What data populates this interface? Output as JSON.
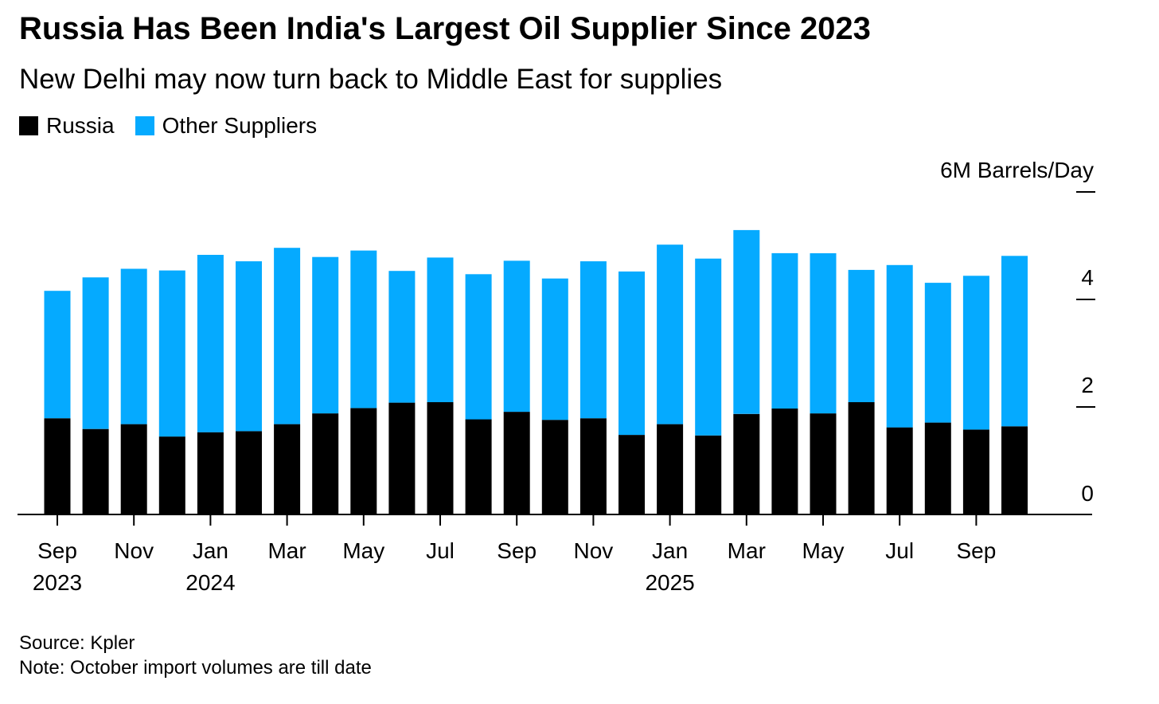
{
  "title": "Russia Has Been India's Largest Oil Supplier Since 2023",
  "subtitle": "New Delhi may now turn back to Middle East for supplies",
  "legend": [
    {
      "label": "Russia",
      "color": "#000000"
    },
    {
      "label": "Other Suppliers",
      "color": "#05aaff"
    }
  ],
  "footer": {
    "source": "Source: Kpler",
    "note": "Note: October import volumes are till date"
  },
  "chart_data": {
    "type": "bar",
    "stacked": true,
    "unit_label": "6M Barrels/Day",
    "ylim": [
      0,
      6
    ],
    "yticks": [
      {
        "value": 6,
        "label": "6M Barrels/Day"
      },
      {
        "value": 4,
        "label": "4"
      },
      {
        "value": 2,
        "label": "2"
      },
      {
        "value": 0,
        "label": "0"
      }
    ],
    "categories": [
      "Sep 2023",
      "Oct 2023",
      "Nov 2023",
      "Dec 2023",
      "Jan 2024",
      "Feb 2024",
      "Mar 2024",
      "Apr 2024",
      "May 2024",
      "Jun 2024",
      "Jul 2024",
      "Aug 2024",
      "Sep 2024",
      "Oct 2024",
      "Nov 2024",
      "Dec 2024",
      "Jan 2025",
      "Feb 2025",
      "Mar 2025",
      "Apr 2025",
      "May 2025",
      "Jun 2025",
      "Jul 2025",
      "Aug 2025",
      "Sep 2025",
      "Oct 2025"
    ],
    "series": [
      {
        "name": "Russia",
        "color": "#000000",
        "values": [
          1.79,
          1.59,
          1.68,
          1.45,
          1.53,
          1.55,
          1.68,
          1.88,
          1.98,
          2.08,
          2.09,
          1.77,
          1.91,
          1.76,
          1.79,
          1.48,
          1.68,
          1.47,
          1.87,
          1.97,
          1.88,
          2.09,
          1.62,
          1.71,
          1.58,
          1.64
        ]
      },
      {
        "name": "Other Suppliers",
        "color": "#05aaff",
        "values": [
          2.37,
          2.82,
          2.89,
          3.09,
          3.3,
          3.16,
          3.28,
          2.91,
          2.93,
          2.45,
          2.69,
          2.7,
          2.81,
          2.63,
          2.92,
          3.04,
          3.34,
          3.29,
          3.42,
          2.89,
          2.98,
          2.46,
          3.02,
          2.6,
          2.86,
          3.17
        ]
      }
    ],
    "x_tick_labels": [
      {
        "index": 0,
        "month": "Sep",
        "year": "2023"
      },
      {
        "index": 2,
        "month": "Nov",
        "year": ""
      },
      {
        "index": 4,
        "month": "Jan",
        "year": "2024"
      },
      {
        "index": 6,
        "month": "Mar",
        "year": ""
      },
      {
        "index": 8,
        "month": "May",
        "year": ""
      },
      {
        "index": 10,
        "month": "Jul",
        "year": ""
      },
      {
        "index": 12,
        "month": "Sep",
        "year": ""
      },
      {
        "index": 14,
        "month": "Nov",
        "year": ""
      },
      {
        "index": 16,
        "month": "Jan",
        "year": "2025"
      },
      {
        "index": 18,
        "month": "Mar",
        "year": ""
      },
      {
        "index": 20,
        "month": "May",
        "year": ""
      },
      {
        "index": 22,
        "month": "Jul",
        "year": ""
      },
      {
        "index": 24,
        "month": "Sep",
        "year": ""
      }
    ]
  }
}
